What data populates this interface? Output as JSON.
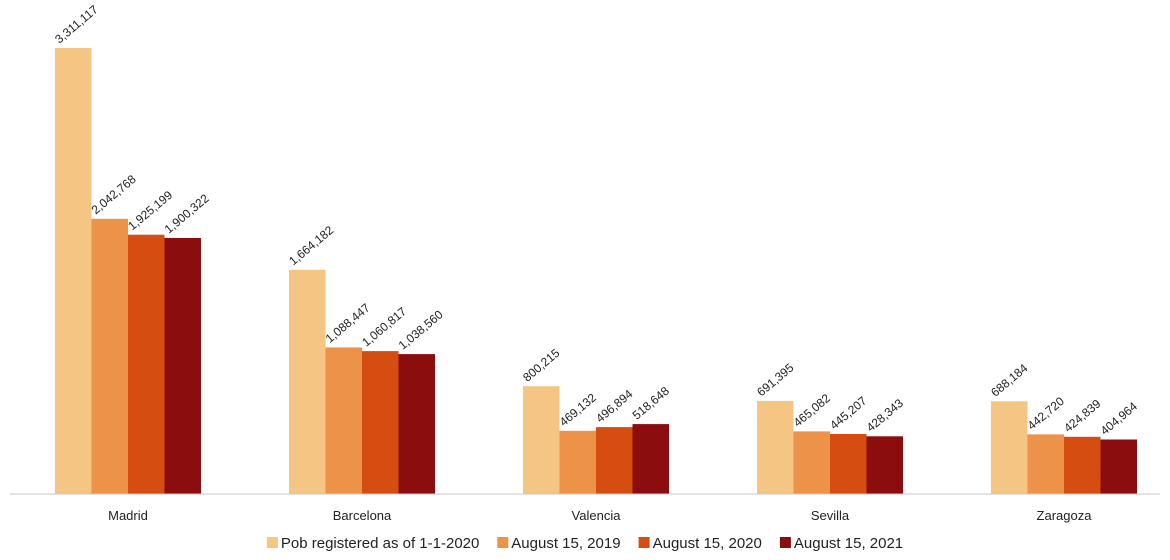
{
  "chart_data": {
    "type": "bar",
    "title": "",
    "xlabel": "",
    "ylabel": "",
    "ylim": [
      0,
      3311117
    ],
    "grid": false,
    "legend_position": "bottom",
    "categories": [
      "Madrid",
      "Barcelona",
      "Valencia",
      "Sevilla",
      "Zaragoza"
    ],
    "series": [
      {
        "name": "Pob registered as of 1-1-2020",
        "color": "#F5C583",
        "values": [
          3311117,
          1664182,
          800215,
          691395,
          688184
        ],
        "labels": [
          "3,311,117",
          "1,664,182",
          "800,215",
          "691,395",
          "688,184"
        ]
      },
      {
        "name": "August 15, 2019",
        "color": "#EC9249",
        "values": [
          2042768,
          1088447,
          469132,
          465082,
          442720
        ],
        "labels": [
          "2,042,768",
          "1,088,447",
          "469,132",
          "465,082",
          "442,720"
        ]
      },
      {
        "name": "August 15, 2020",
        "color": "#D64D12",
        "values": [
          1925199,
          1060817,
          496894,
          445207,
          424839
        ],
        "labels": [
          "1,925,199",
          "1,060,817",
          "496,894",
          "445,207",
          "424,839"
        ]
      },
      {
        "name": "August 15, 2021",
        "color": "#8B0D0D",
        "values": [
          1900322,
          1038560,
          518648,
          428343,
          404964
        ],
        "labels": [
          "1,900,322",
          "1,038,560",
          "518,648",
          "428,343",
          "404,964"
        ]
      }
    ]
  }
}
